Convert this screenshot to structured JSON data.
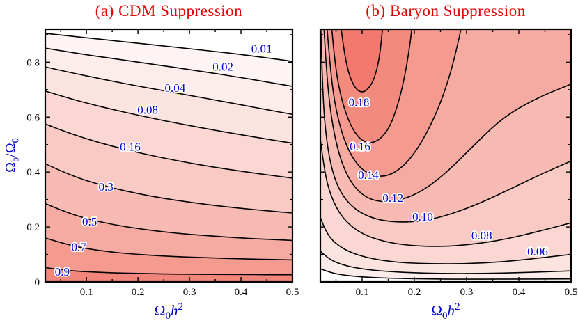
{
  "colors": {
    "title": "#e60000",
    "axis_label": "#0000cc",
    "contour_label": "#0000cc",
    "line": "#000000",
    "tick_text": "#000000",
    "background": "#ffffff"
  },
  "chart_data": [
    {
      "type": "contour",
      "title": "(a) CDM Suppression",
      "xlim": [
        0.02,
        0.5
      ],
      "ylim": [
        0,
        0.92
      ],
      "xlabel_parts": [
        [
          "Ω",
          "n"
        ],
        [
          "0",
          "sub"
        ],
        [
          "h",
          "i"
        ],
        [
          "2",
          "sup"
        ]
      ],
      "ylabel_parts": [
        [
          "Ω",
          "n"
        ],
        [
          "b",
          "sub"
        ],
        [
          "/Ω",
          "n"
        ],
        [
          "0",
          "sub"
        ]
      ],
      "x_ticks": [
        {
          "v": 0.1,
          "label": "0.1"
        },
        {
          "v": 0.2,
          "label": "0.2"
        },
        {
          "v": 0.3,
          "label": "0.3"
        },
        {
          "v": 0.4,
          "label": "0.4"
        },
        {
          "v": 0.5,
          "label": "0.5"
        }
      ],
      "x_minor": [
        0.05,
        0.15,
        0.25,
        0.35,
        0.45
      ],
      "y_ticks": [
        {
          "v": 0,
          "label": "0"
        },
        {
          "v": 0.2,
          "label": "0.2"
        },
        {
          "v": 0.4,
          "label": "0.4"
        },
        {
          "v": 0.6,
          "label": "0.6"
        },
        {
          "v": 0.8,
          "label": "0.8"
        }
      ],
      "y_minor": [
        0.1,
        0.3,
        0.5,
        0.7,
        0.9
      ],
      "contour_x": [
        0.02,
        0.06,
        0.1,
        0.15,
        0.2,
        0.25,
        0.3,
        0.35,
        0.4,
        0.45,
        0.5
      ],
      "contours": [
        {
          "level": 0.01,
          "label": "0.01",
          "fill": "#fdf4f3",
          "label_pos": [
            0.44,
            0.848
          ],
          "close_via": [
            [
              0.5,
              0
            ],
            [
              0.02,
              0
            ]
          ],
          "y": [
            0.905,
            0.897,
            0.889,
            0.879,
            0.869,
            0.859,
            0.849,
            0.839,
            0.828,
            0.816,
            0.803
          ]
        },
        {
          "level": 0.02,
          "label": "0.02",
          "fill": "#fcedeb",
          "label_pos": [
            0.365,
            0.782
          ],
          "close_via": [
            [
              0.5,
              0
            ],
            [
              0.02,
              0
            ]
          ],
          "y": [
            0.851,
            0.839,
            0.827,
            0.814,
            0.8,
            0.787,
            0.773,
            0.759,
            0.744,
            0.728,
            0.712
          ]
        },
        {
          "level": 0.04,
          "label": "0.04",
          "fill": "#fbe3e0",
          "label_pos": [
            0.272,
            0.705
          ],
          "close_via": [
            [
              0.5,
              0
            ],
            [
              0.02,
              0
            ]
          ],
          "y": [
            0.783,
            0.766,
            0.75,
            0.731,
            0.713,
            0.696,
            0.679,
            0.662,
            0.645,
            0.627,
            0.61
          ]
        },
        {
          "level": 0.08,
          "label": "0.08",
          "fill": "#fad7d3",
          "label_pos": [
            0.219,
            0.625
          ],
          "close_via": [
            [
              0.5,
              0
            ],
            [
              0.02,
              0
            ]
          ],
          "y": [
            0.695,
            0.672,
            0.651,
            0.628,
            0.607,
            0.587,
            0.569,
            0.552,
            0.536,
            0.52,
            0.505
          ]
        },
        {
          "level": 0.16,
          "label": "0.16",
          "fill": "#f9cac4",
          "label_pos": [
            0.185,
            0.49
          ],
          "close_via": [
            [
              0.5,
              0
            ],
            [
              0.02,
              0
            ]
          ],
          "y": [
            0.575,
            0.546,
            0.521,
            0.494,
            0.471,
            0.451,
            0.433,
            0.417,
            0.403,
            0.39,
            0.378
          ]
        },
        {
          "level": 0.3,
          "label": "0.3",
          "fill": "#f7bbb4",
          "label_pos": [
            0.138,
            0.345
          ],
          "close_via": [
            [
              0.5,
              0
            ],
            [
              0.02,
              0
            ]
          ],
          "y": [
            0.43,
            0.396,
            0.368,
            0.342,
            0.321,
            0.304,
            0.29,
            0.278,
            0.268,
            0.259,
            0.251
          ]
        },
        {
          "level": 0.5,
          "label": "0.5",
          "fill": "#f6aba2",
          "label_pos": [
            0.106,
            0.218
          ],
          "close_via": [
            [
              0.5,
              0
            ],
            [
              0.02,
              0
            ]
          ],
          "y": [
            0.285,
            0.254,
            0.23,
            0.209,
            0.194,
            0.182,
            0.173,
            0.166,
            0.16,
            0.155,
            0.151
          ]
        },
        {
          "level": 0.7,
          "label": "0.7",
          "fill": "#f49a8f",
          "label_pos": [
            0.085,
            0.125
          ],
          "close_via": [
            [
              0.5,
              0
            ],
            [
              0.02,
              0
            ]
          ],
          "y": [
            0.16,
            0.137,
            0.121,
            0.108,
            0.1,
            0.094,
            0.09,
            0.087,
            0.084,
            0.082,
            0.08
          ]
        },
        {
          "level": 0.9,
          "label": "0.9",
          "fill": "#f2867a",
          "label_pos": [
            0.053,
            0.035
          ],
          "close_via": [
            [
              0.5,
              0
            ],
            [
              0.02,
              0
            ]
          ],
          "y": [
            0.052,
            0.042,
            0.037,
            0.033,
            0.031,
            0.029,
            0.028,
            0.027,
            0.027,
            0.026,
            0.026
          ]
        }
      ]
    },
    {
      "type": "contour",
      "title": "(b) Baryon Suppression",
      "xlim": [
        0.02,
        0.5
      ],
      "ylim": [
        0,
        0.92
      ],
      "xlabel_parts": [
        [
          "Ω",
          "n"
        ],
        [
          "0",
          "sub"
        ],
        [
          "h",
          "i"
        ],
        [
          "2",
          "sup"
        ]
      ],
      "x_ticks": [
        {
          "v": 0.1,
          "label": "0.1"
        },
        {
          "v": 0.2,
          "label": "0.2"
        },
        {
          "v": 0.3,
          "label": "0.3"
        },
        {
          "v": 0.4,
          "label": "0.4"
        },
        {
          "v": 0.5,
          "label": "0.5"
        }
      ],
      "x_minor": [
        0.05,
        0.15,
        0.25,
        0.35,
        0.45
      ],
      "y_ticks": [
        {
          "v": 0,
          "label": ""
        },
        {
          "v": 0.2,
          "label": ""
        },
        {
          "v": 0.4,
          "label": ""
        },
        {
          "v": 0.6,
          "label": ""
        },
        {
          "v": 0.8,
          "label": ""
        }
      ],
      "y_minor": [
        0.1,
        0.3,
        0.5,
        0.7,
        0.9
      ],
      "contours": [
        {
          "level": 0.02,
          "label": "",
          "fill": "#fcedeb",
          "close_via": [
            [
              0.5,
              0.92
            ],
            [
              0.02,
              0.92
            ]
          ],
          "points": [
            [
              0.02,
              0.048
            ],
            [
              0.04,
              0.033
            ],
            [
              0.07,
              0.023
            ],
            [
              0.115,
              0.016
            ],
            [
              0.18,
              0.012
            ],
            [
              0.27,
              0.01
            ],
            [
              0.37,
              0.01
            ],
            [
              0.5,
              0.011
            ]
          ]
        },
        {
          "level": 0.04,
          "label": "",
          "fill": "#fbe3e0",
          "close_via": [
            [
              0.5,
              0.92
            ],
            [
              0.02,
              0.92
            ]
          ],
          "points": [
            [
              0.02,
              0.112
            ],
            [
              0.034,
              0.086
            ],
            [
              0.058,
              0.064
            ],
            [
              0.095,
              0.048
            ],
            [
              0.145,
              0.038
            ],
            [
              0.21,
              0.032
            ],
            [
              0.29,
              0.03
            ],
            [
              0.37,
              0.032
            ],
            [
              0.44,
              0.036
            ],
            [
              0.5,
              0.04
            ]
          ]
        },
        {
          "level": 0.06,
          "label": "0.06",
          "fill": "#fad7d3",
          "label_pos": [
            0.436,
            0.109
          ],
          "close_via": [
            [
              0.5,
              0.92
            ],
            [
              0.02,
              0.92
            ]
          ],
          "points": [
            [
              0.02,
              0.235
            ],
            [
              0.03,
              0.183
            ],
            [
              0.048,
              0.14
            ],
            [
              0.078,
              0.106
            ],
            [
              0.118,
              0.084
            ],
            [
              0.168,
              0.071
            ],
            [
              0.228,
              0.066
            ],
            [
              0.3,
              0.066
            ],
            [
              0.37,
              0.073
            ],
            [
              0.44,
              0.087
            ],
            [
              0.5,
              0.1
            ]
          ]
        },
        {
          "level": 0.08,
          "label": "0.08",
          "fill": "#f9cac4",
          "label_pos": [
            0.329,
            0.167
          ],
          "close_via": [
            [
              0.5,
              0.92
            ],
            [
              0.02,
              0.92
            ]
          ],
          "points": [
            [
              0.02,
              0.52
            ],
            [
              0.027,
              0.41
            ],
            [
              0.04,
              0.31
            ],
            [
              0.062,
              0.232
            ],
            [
              0.095,
              0.178
            ],
            [
              0.14,
              0.147
            ],
            [
              0.19,
              0.132
            ],
            [
              0.25,
              0.128
            ],
            [
              0.31,
              0.136
            ],
            [
              0.375,
              0.155
            ],
            [
              0.44,
              0.185
            ],
            [
              0.5,
              0.215
            ]
          ]
        },
        {
          "level": 0.1,
          "label": "0.10",
          "fill": "#f7bbb4",
          "label_pos": [
            0.216,
            0.236
          ],
          "close_via": [
            [
              0.5,
              0.92
            ]
          ],
          "points": [
            [
              0.021,
              0.92
            ],
            [
              0.024,
              0.7
            ],
            [
              0.031,
              0.52
            ],
            [
              0.044,
              0.39
            ],
            [
              0.063,
              0.31
            ],
            [
              0.09,
              0.258
            ],
            [
              0.125,
              0.228
            ],
            [
              0.165,
              0.217
            ],
            [
              0.21,
              0.22
            ],
            [
              0.26,
              0.24
            ],
            [
              0.315,
              0.278
            ],
            [
              0.375,
              0.33
            ],
            [
              0.44,
              0.39
            ],
            [
              0.5,
              0.44
            ]
          ]
        },
        {
          "level": 0.12,
          "label": "0.12",
          "fill": "#f6aba2",
          "label_pos": [
            0.159,
            0.304
          ],
          "close_via": [
            [
              0.5,
              0.92
            ]
          ],
          "points": [
            [
              0.027,
              0.92
            ],
            [
              0.032,
              0.75
            ],
            [
              0.042,
              0.58
            ],
            [
              0.058,
              0.445
            ],
            [
              0.08,
              0.355
            ],
            [
              0.108,
              0.305
            ],
            [
              0.14,
              0.29
            ],
            [
              0.175,
              0.298
            ],
            [
              0.215,
              0.33
            ],
            [
              0.26,
              0.395
            ],
            [
              0.31,
              0.49
            ],
            [
              0.37,
              0.6
            ],
            [
              0.435,
              0.67
            ],
            [
              0.5,
              0.72
            ]
          ]
        },
        {
          "level": 0.14,
          "label": "0.14",
          "fill": "#f49a8f",
          "label_pos": [
            0.112,
            0.388
          ],
          "close_via": [],
          "points": [
            [
              0.033,
              0.92
            ],
            [
              0.039,
              0.77
            ],
            [
              0.05,
              0.62
            ],
            [
              0.068,
              0.5
            ],
            [
              0.092,
              0.42
            ],
            [
              0.12,
              0.385
            ],
            [
              0.152,
              0.385
            ],
            [
              0.185,
              0.43
            ],
            [
              0.215,
              0.51
            ],
            [
              0.245,
              0.625
            ],
            [
              0.268,
              0.75
            ],
            [
              0.285,
              0.88
            ],
            [
              0.289,
              0.92
            ]
          ]
        },
        {
          "level": 0.16,
          "label": "0.16",
          "fill": "#f28a7e",
          "label_pos": [
            0.096,
            0.492
          ],
          "close_via": [],
          "points": [
            [
              0.042,
              0.92
            ],
            [
              0.048,
              0.79
            ],
            [
              0.06,
              0.665
            ],
            [
              0.078,
              0.565
            ],
            [
              0.1,
              0.51
            ],
            [
              0.125,
              0.505
            ],
            [
              0.15,
              0.55
            ],
            [
              0.168,
              0.64
            ],
            [
              0.182,
              0.75
            ],
            [
              0.192,
              0.87
            ],
            [
              0.195,
              0.92
            ]
          ]
        },
        {
          "level": 0.18,
          "label": "0.18",
          "fill": "#f1796d",
          "label_pos": [
            0.094,
            0.652
          ],
          "close_via": [],
          "points": [
            [
              0.06,
              0.92
            ],
            [
              0.066,
              0.83
            ],
            [
              0.076,
              0.745
            ],
            [
              0.09,
              0.695
            ],
            [
              0.106,
              0.69
            ],
            [
              0.122,
              0.73
            ],
            [
              0.133,
              0.81
            ],
            [
              0.139,
              0.92
            ]
          ]
        }
      ]
    }
  ]
}
